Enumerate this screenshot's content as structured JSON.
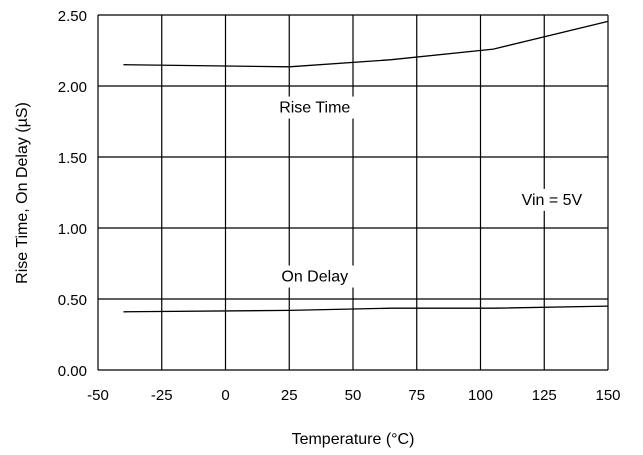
{
  "chart_data": {
    "type": "line",
    "title": "",
    "xlabel": "Temperature (°C)",
    "ylabel": "Rise Time, On Delay (µS)",
    "xlim": [
      -50,
      150
    ],
    "ylim": [
      0,
      2.5
    ],
    "x_ticks": [
      -50,
      -25,
      0,
      25,
      50,
      75,
      100,
      125,
      150
    ],
    "x_tick_labels": [
      "-50",
      "-25",
      "0",
      "25",
      "50",
      "75",
      "100",
      "125",
      "150"
    ],
    "y_ticks": [
      0,
      0.5,
      1.0,
      1.5,
      2.0,
      2.5
    ],
    "y_tick_labels": [
      "0.00",
      "0.50",
      "1.00",
      "1.50",
      "2.00",
      "2.50"
    ],
    "grid": true,
    "series": [
      {
        "name": "Rise Time",
        "x": [
          -40,
          25,
          65,
          105,
          150
        ],
        "y": [
          2.15,
          2.135,
          2.185,
          2.26,
          2.455
        ]
      },
      {
        "name": "On Delay",
        "x": [
          -40,
          25,
          65,
          105,
          150
        ],
        "y": [
          0.41,
          0.42,
          0.435,
          0.435,
          0.45
        ]
      }
    ],
    "annotations": [
      {
        "text": "Rise Time",
        "x": 35,
        "y": 1.82
      },
      {
        "text": "On Delay",
        "x": 35,
        "y": 0.63
      },
      {
        "text": "Vin = 5V",
        "x": 128,
        "y": 1.17
      }
    ],
    "colors": {
      "line": "#000000",
      "grid": "#000000",
      "background": "#ffffff"
    }
  }
}
